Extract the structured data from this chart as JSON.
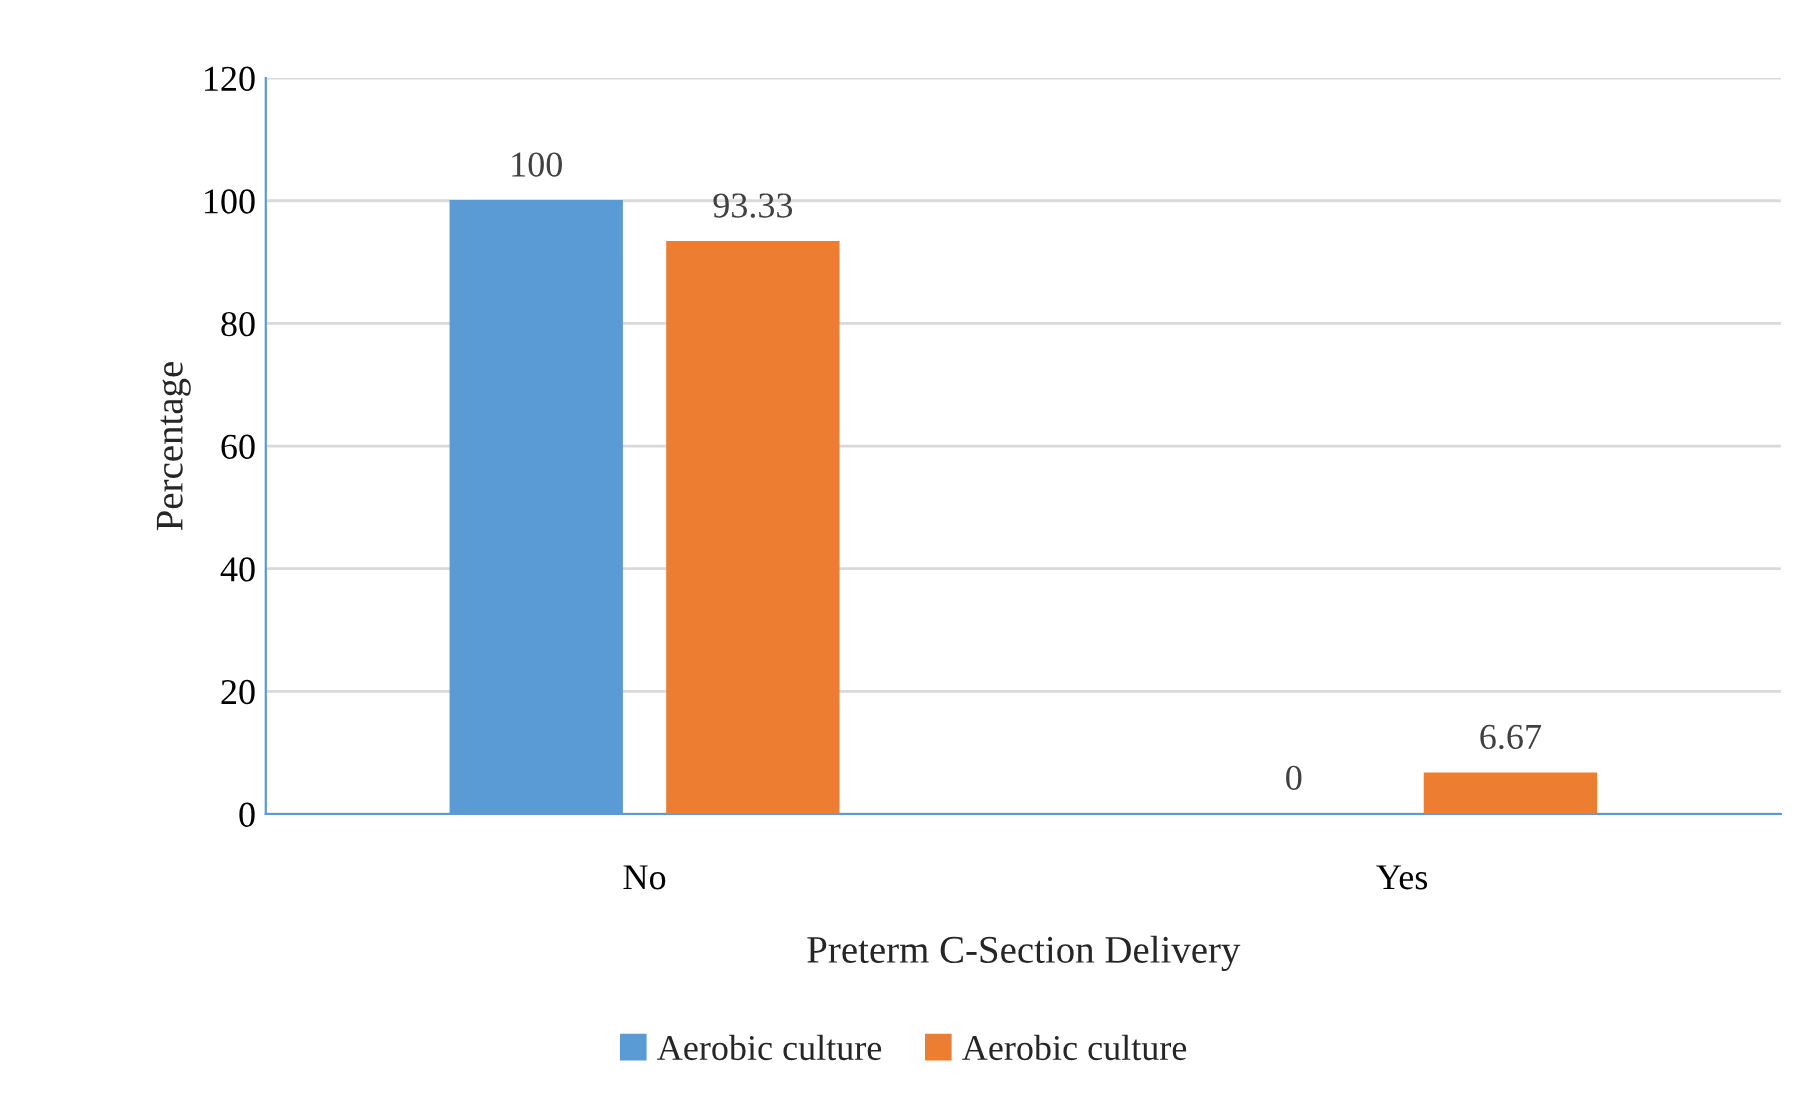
{
  "chart_data": {
    "type": "bar",
    "categories": [
      "No",
      "Yes"
    ],
    "xlabel": "Preterm C-Section Delivery",
    "ylabel": "Percentage",
    "series": [
      {
        "name": "Aerobic culture",
        "color": "#5b9bd5",
        "values": [
          100,
          0
        ]
      },
      {
        "name": "Aerobic culture",
        "color": "#ed7d31",
        "values": [
          93.33,
          6.67
        ]
      }
    ],
    "ylim": [
      0,
      120
    ],
    "yticks": [
      0,
      20,
      40,
      60,
      80,
      100,
      120
    ],
    "grid": "y",
    "legend": "bottom",
    "data_labels": true
  }
}
